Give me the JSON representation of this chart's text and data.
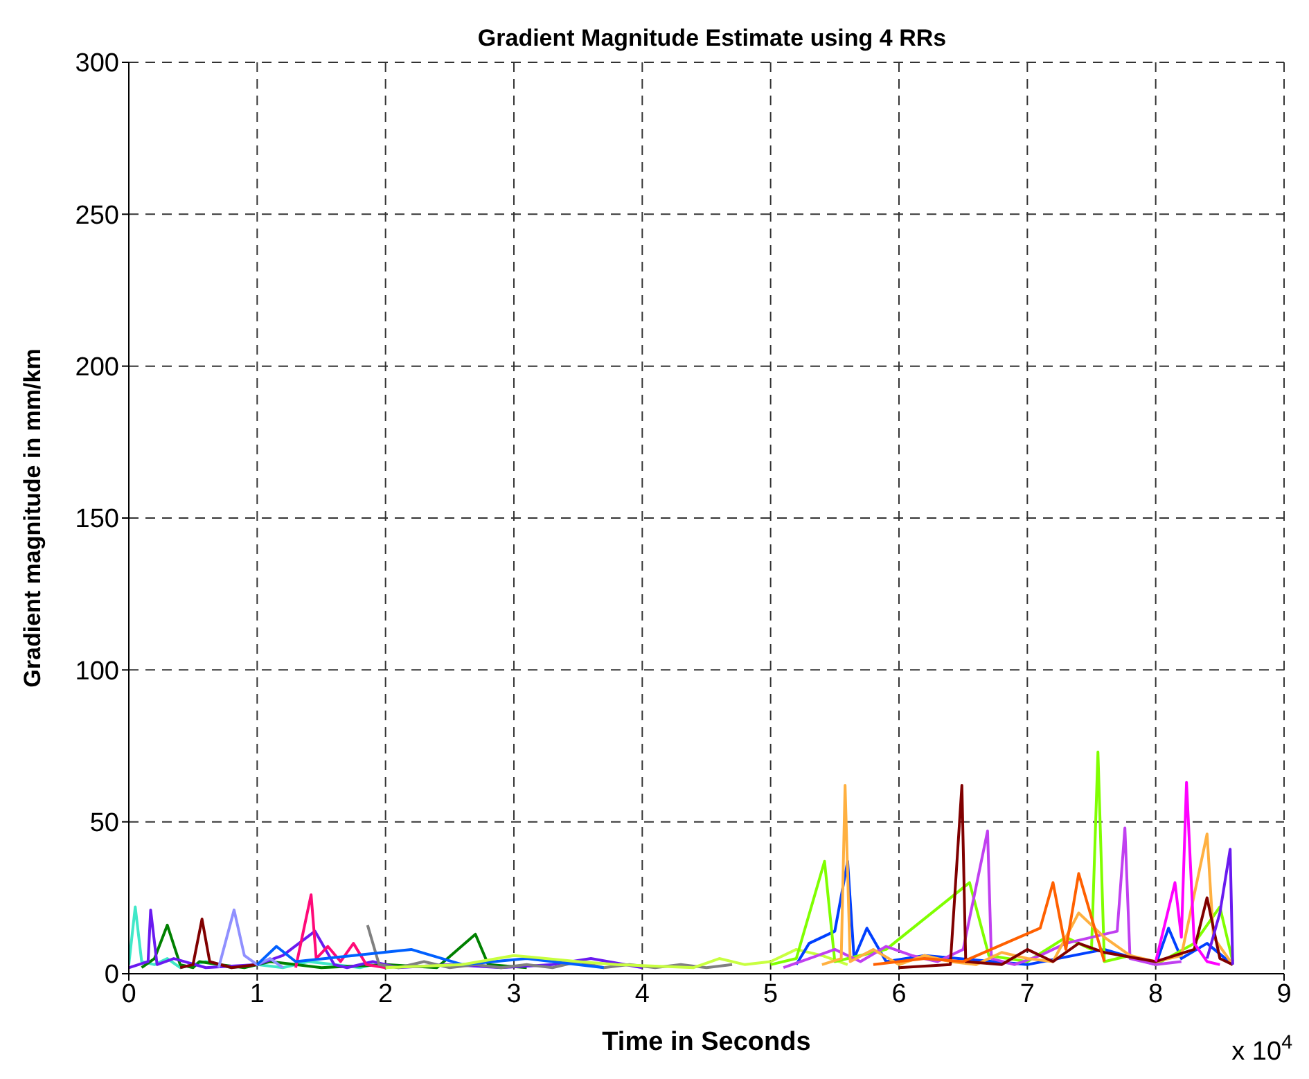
{
  "chart_data": {
    "type": "line",
    "title": "Gradient Magnitude Estimate using 4 RRs",
    "xlabel": "Time in Seconds",
    "ylabel": "Gradient magnitude in mm/km",
    "annotations": [
      "x 10$^{4}$"
    ],
    "xlim": [
      0,
      9
    ],
    "xticks": [
      0,
      1,
      2,
      3,
      4,
      5,
      6,
      7,
      8,
      9
    ],
    "ylim": [
      0,
      300
    ],
    "yticks": [
      0,
      50,
      100,
      150,
      200,
      250,
      300
    ],
    "grid": true,
    "line_style": "solid",
    "series": [
      {
        "color": "#40e8c8",
        "x": [
          0,
          0.05,
          0.1,
          0.2,
          0.3,
          0.4,
          0.5,
          0.6,
          0.8,
          1.0,
          1.2,
          1.4,
          1.6,
          1.8,
          1.9
        ],
        "values": [
          3,
          22,
          4,
          3,
          5,
          2,
          3,
          4,
          2,
          3,
          2,
          4,
          3,
          2,
          3
        ]
      },
      {
        "color": "#008000",
        "x": [
          0.1,
          0.2,
          0.3,
          0.4,
          0.5,
          0.55,
          0.7,
          0.9,
          1.1,
          1.3,
          1.5,
          2.0,
          2.4,
          2.7,
          2.8,
          3.1
        ],
        "values": [
          2,
          5,
          16,
          3,
          2,
          4,
          3,
          2,
          4,
          3,
          2,
          3,
          2,
          13,
          3,
          2
        ]
      },
      {
        "color": "#6a1af0",
        "x": [
          0,
          0.15,
          0.17,
          0.22,
          0.35,
          0.6,
          1.0,
          1.2,
          1.45,
          1.6,
          1.7,
          1.9,
          2.1,
          2.5,
          2.9,
          3.3,
          3.6,
          4.0
        ],
        "values": [
          2,
          4,
          21,
          3,
          5,
          2,
          3,
          6,
          14,
          3,
          2,
          4,
          2,
          3,
          2,
          3,
          5,
          2
        ]
      },
      {
        "color": "#800000",
        "x": [
          0.4,
          0.5,
          0.57,
          0.63,
          0.8,
          1.0
        ],
        "values": [
          2,
          3,
          18,
          4,
          2,
          3
        ]
      },
      {
        "color": "#9090ff",
        "x": [
          0.7,
          0.82,
          0.9,
          1.0,
          1.1,
          1.2
        ],
        "values": [
          2,
          21,
          6,
          3,
          5,
          2
        ]
      },
      {
        "color": "#ff0a78",
        "x": [
          1.3,
          1.42,
          1.46,
          1.55,
          1.65,
          1.75,
          1.85,
          2.0
        ],
        "values": [
          2,
          26,
          5,
          9,
          4,
          10,
          3,
          2
        ]
      },
      {
        "color": "#808080",
        "x": [
          1.86,
          1.95,
          2.1,
          2.3,
          2.5,
          2.7,
          2.9,
          3.1,
          3.3,
          3.5,
          3.7,
          3.9,
          4.1,
          4.3,
          4.5,
          4.7
        ],
        "values": [
          16,
          3,
          2,
          4,
          2,
          3,
          2,
          3,
          2,
          4,
          2,
          3,
          2,
          3,
          2,
          3
        ]
      },
      {
        "color": "#0060ff",
        "x": [
          1.0,
          1.15,
          1.3,
          2.2,
          2.6,
          3.1,
          3.7
        ],
        "values": [
          3,
          9,
          4,
          8,
          3,
          5,
          2
        ]
      },
      {
        "color": "#c8ff40",
        "x": [
          2.0,
          2.6,
          3.0,
          3.5,
          3.8,
          4.4,
          4.6,
          4.8,
          5.0,
          5.2,
          5.4,
          5.6
        ],
        "values": [
          2,
          3,
          6,
          4,
          3,
          2,
          5,
          3,
          4,
          8,
          6,
          3
        ]
      },
      {
        "color": "#0040ff",
        "x": [
          5.2,
          5.3,
          5.5,
          5.6,
          5.65,
          5.75,
          5.9,
          6.2,
          7.0,
          7.6,
          8.0,
          8.1,
          8.2,
          8.4,
          8.6
        ],
        "values": [
          3,
          10,
          14,
          37,
          5,
          15,
          4,
          6,
          3,
          8,
          3,
          15,
          5,
          10,
          3
        ]
      },
      {
        "color": "#80ff00",
        "x": [
          5.0,
          5.2,
          5.42,
          5.5,
          5.9,
          6.55,
          6.7,
          7.0,
          7.3,
          7.5,
          7.55,
          7.6,
          7.8,
          8.0,
          8.3,
          8.5,
          8.6
        ],
        "values": [
          3,
          5,
          37,
          4,
          8,
          30,
          6,
          4,
          12,
          8,
          73,
          4,
          6,
          3,
          10,
          22,
          4
        ]
      },
      {
        "color": "#c040f0",
        "x": [
          5.1,
          5.3,
          5.5,
          5.7,
          5.9,
          6.1,
          6.3,
          6.5,
          6.69,
          6.72,
          6.9,
          7.1,
          7.3,
          7.5,
          7.7,
          7.76,
          7.8,
          8.0,
          8.2
        ],
        "values": [
          2,
          5,
          8,
          4,
          9,
          6,
          4,
          8,
          47,
          5,
          3,
          6,
          10,
          12,
          14,
          48,
          5,
          3,
          4
        ]
      },
      {
        "color": "#ffb040",
        "x": [
          5.4,
          5.55,
          5.58,
          5.62,
          5.8,
          6.0,
          6.2,
          6.4,
          6.6,
          6.8,
          7.0,
          7.2,
          7.4,
          7.6,
          7.8,
          8.0,
          8.2,
          8.4,
          8.45,
          8.6
        ],
        "values": [
          3,
          5,
          62,
          4,
          8,
          3,
          6,
          4,
          3,
          7,
          5,
          4,
          20,
          12,
          6,
          4,
          6,
          46,
          12,
          3
        ]
      },
      {
        "color": "#800000",
        "x": [
          6.0,
          6.4,
          6.49,
          6.52,
          6.8,
          7.0,
          7.2,
          7.4,
          7.6,
          8.0,
          8.3,
          8.4,
          8.5,
          8.6
        ],
        "values": [
          2,
          3,
          62,
          4,
          3,
          8,
          4,
          10,
          7,
          4,
          8,
          25,
          5,
          3
        ]
      },
      {
        "color": "#ff00ff",
        "x": [
          8.0,
          8.15,
          8.2,
          8.24,
          8.3,
          8.4,
          8.5
        ],
        "values": [
          4,
          30,
          12,
          63,
          10,
          4,
          3
        ]
      },
      {
        "color": "#ff6000",
        "x": [
          5.8,
          6.2,
          6.5,
          7.1,
          7.2,
          7.3,
          7.4,
          7.6
        ],
        "values": [
          3,
          5,
          4,
          15,
          30,
          8,
          33,
          4
        ]
      },
      {
        "color": "#6a1af0",
        "x": [
          8.4,
          8.5,
          8.58,
          8.6
        ],
        "values": [
          5,
          20,
          41,
          3
        ]
      }
    ]
  }
}
